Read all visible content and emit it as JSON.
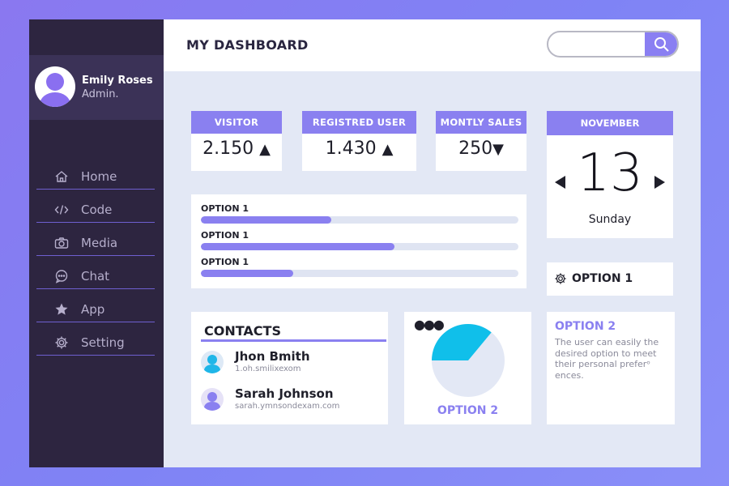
{
  "user": {
    "name": "Emily Roses",
    "role": "Admin."
  },
  "nav": [
    {
      "label": "Home",
      "icon": "home-icon"
    },
    {
      "label": "Code",
      "icon": "code-icon"
    },
    {
      "label": "Media",
      "icon": "camera-icon"
    },
    {
      "label": "Chat",
      "icon": "chat-icon"
    },
    {
      "label": "App",
      "icon": "star-icon"
    },
    {
      "label": "Setting",
      "icon": "gear-icon"
    }
  ],
  "header": {
    "title": "MY DASHBOARD",
    "search_placeholder": ""
  },
  "stats": [
    {
      "label": "VISITOR",
      "value": "2.150",
      "trend": "up"
    },
    {
      "label": "REGISTRED USER",
      "value": "1.430",
      "trend": "up"
    },
    {
      "label": "MONTLY SALES",
      "value": "250",
      "trend": "down"
    }
  ],
  "calendar": {
    "month": "NOVEMBER",
    "day": "13",
    "weekday": "Sunday"
  },
  "progress": [
    {
      "label": "OPTION 1",
      "fraction": 0.41
    },
    {
      "label": "OPTION 1",
      "fraction": 0.61
    },
    {
      "label": "OPTION 1",
      "fraction": 0.29
    }
  ],
  "option1": {
    "label": "OPTION 1"
  },
  "contacts": {
    "title": "CONTACTS",
    "items": [
      {
        "name": "Jhon Bmith",
        "email": "1.oh.smilixexom",
        "avatar_color": "#1fb6e8"
      },
      {
        "name": "Sarah Johnson",
        "email": "sarah.ymnsondexam.com",
        "avatar_color": "#8a80f0"
      }
    ]
  },
  "pie": {
    "label": "OPTION 2",
    "share": 0.36,
    "colors": [
      "#10bfea",
      "#e3e8f5"
    ]
  },
  "option2": {
    "title": "OPTION 2",
    "description": "The user can easily the desired option to meet their personal preferᵒ ences."
  },
  "colors": {
    "accent": "#8a80f0",
    "sidebar": "#2d2540",
    "content_bg": "#e3e8f5"
  }
}
